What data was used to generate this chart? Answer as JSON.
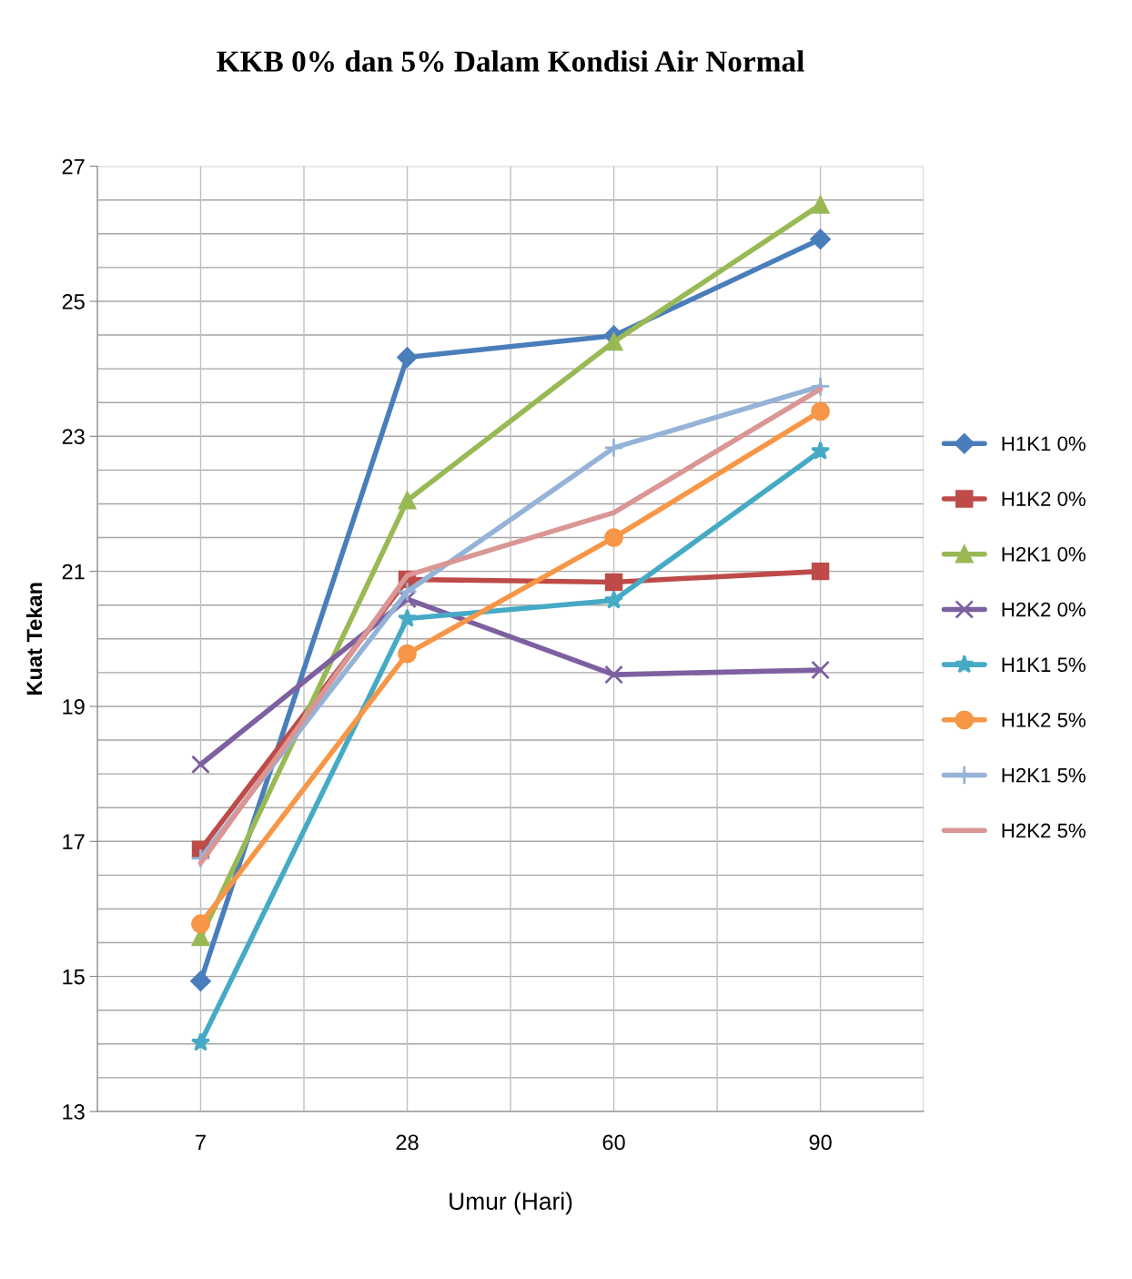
{
  "chart_data": {
    "type": "line",
    "title": "KKB 0% dan 5% Dalam Kondisi Air Normal",
    "xlabel": "Umur (Hari)",
    "ylabel": "Kuat Tekan",
    "categories": [
      "7",
      "28",
      "60",
      "90"
    ],
    "ylim": [
      13,
      27
    ],
    "yticks": [
      13,
      15,
      17,
      19,
      21,
      23,
      25,
      27
    ],
    "grid": true,
    "legend": "right",
    "series": [
      {
        "name": "H1K1 0%",
        "color": "#4a7ebb",
        "marker": "diamond",
        "values": [
          14.93,
          24.17,
          24.49,
          25.92
        ]
      },
      {
        "name": "H1K2 0%",
        "color": "#be4b48",
        "marker": "square",
        "values": [
          16.88,
          20.88,
          20.84,
          21.0
        ]
      },
      {
        "name": "H2K1 0%",
        "color": "#98b954",
        "marker": "triangle",
        "values": [
          15.58,
          22.05,
          24.4,
          26.43
        ]
      },
      {
        "name": "H2K2 0%",
        "color": "#7d60a0",
        "marker": "cross",
        "values": [
          18.14,
          20.59,
          19.47,
          19.54
        ]
      },
      {
        "name": "H1K1 5%",
        "color": "#46aac5",
        "marker": "star",
        "values": [
          14.02,
          20.3,
          20.57,
          22.78
        ]
      },
      {
        "name": "H1K2 5%",
        "color": "#f79646",
        "marker": "circle",
        "values": [
          15.78,
          19.78,
          21.5,
          23.37
        ]
      },
      {
        "name": "H2K1 5%",
        "color": "#95b3d7",
        "marker": "plus",
        "values": [
          16.75,
          20.7,
          22.83,
          23.74
        ]
      },
      {
        "name": "H2K2 5%",
        "color": "#d99694",
        "marker": "none",
        "values": [
          16.68,
          20.94,
          21.87,
          23.7
        ]
      }
    ]
  }
}
